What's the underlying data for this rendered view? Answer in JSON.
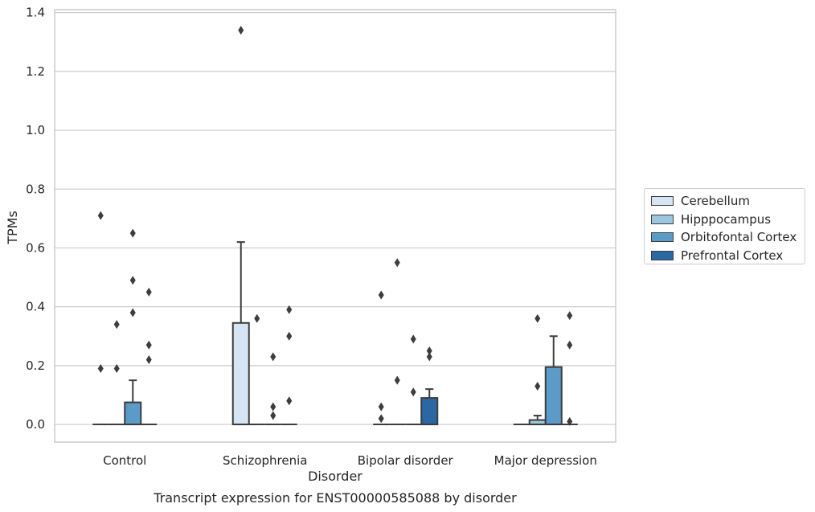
{
  "chart_data": {
    "type": "box",
    "title": "",
    "xlabel": "Disorder",
    "ylabel": "TPMs",
    "caption": "Transcript expression for ENST00000585088 by disorder",
    "ylim": [
      -0.06,
      1.41
    ],
    "yticks": [
      "0.0",
      "0.2",
      "0.4",
      "0.6",
      "0.8",
      "1.0",
      "1.2",
      "1.4"
    ],
    "grid": true,
    "legend_position": "right",
    "categories": [
      "Control",
      "Schizophrenia",
      "Bipolar disorder",
      "Major depression"
    ],
    "series": [
      {
        "name": "Cerebellum",
        "color": "#d6e5f4",
        "boxes": [
          {
            "q1": 0.0,
            "median": 0.0,
            "q3": 0.0,
            "whisker_low": 0.0,
            "whisker_high": 0.0,
            "outliers": [
              0.19,
              0.71
            ]
          },
          {
            "q1": 0.0,
            "median": 0.0,
            "q3": 0.345,
            "whisker_low": 0.0,
            "whisker_high": 0.62,
            "outliers": [
              1.34
            ]
          },
          {
            "q1": 0.0,
            "median": 0.0,
            "q3": 0.0,
            "whisker_low": 0.0,
            "whisker_high": 0.0,
            "outliers": [
              0.02,
              0.06,
              0.44
            ]
          },
          {
            "q1": 0.0,
            "median": 0.0,
            "q3": 0.0,
            "whisker_low": 0.0,
            "whisker_high": 0.0,
            "outliers": []
          }
        ]
      },
      {
        "name": "Hipppocampus",
        "color": "#9dc7e0",
        "boxes": [
          {
            "q1": 0.0,
            "median": 0.0,
            "q3": 0.0,
            "whisker_low": 0.0,
            "whisker_high": 0.0,
            "outliers": [
              0.19,
              0.34
            ]
          },
          {
            "q1": 0.0,
            "median": 0.0,
            "q3": 0.0,
            "whisker_low": 0.0,
            "whisker_high": 0.0,
            "outliers": [
              0.36
            ]
          },
          {
            "q1": 0.0,
            "median": 0.0,
            "q3": 0.0,
            "whisker_low": 0.0,
            "whisker_high": 0.0,
            "outliers": [
              0.15,
              0.55
            ]
          },
          {
            "q1": 0.0,
            "median": 0.0,
            "q3": 0.015,
            "whisker_low": 0.0,
            "whisker_high": 0.03,
            "outliers": [
              0.13,
              0.36
            ]
          }
        ]
      },
      {
        "name": "Orbitofontal Cortex",
        "color": "#5b9bc8",
        "boxes": [
          {
            "q1": 0.0,
            "median": 0.0,
            "q3": 0.075,
            "whisker_low": 0.0,
            "whisker_high": 0.15,
            "outliers": [
              0.38,
              0.49,
              0.65
            ]
          },
          {
            "q1": 0.0,
            "median": 0.0,
            "q3": 0.0,
            "whisker_low": 0.0,
            "whisker_high": 0.0,
            "outliers": [
              0.03,
              0.06,
              0.23
            ]
          },
          {
            "q1": 0.0,
            "median": 0.0,
            "q3": 0.0,
            "whisker_low": 0.0,
            "whisker_high": 0.0,
            "outliers": [
              0.11,
              0.29
            ]
          },
          {
            "q1": 0.0,
            "median": 0.0,
            "q3": 0.195,
            "whisker_low": 0.0,
            "whisker_high": 0.3,
            "outliers": []
          }
        ]
      },
      {
        "name": "Prefrontal Cortex",
        "color": "#2a68a5",
        "boxes": [
          {
            "q1": 0.0,
            "median": 0.0,
            "q3": 0.0,
            "whisker_low": 0.0,
            "whisker_high": 0.0,
            "outliers": [
              0.22,
              0.27,
              0.45
            ]
          },
          {
            "q1": 0.0,
            "median": 0.0,
            "q3": 0.0,
            "whisker_low": 0.0,
            "whisker_high": 0.0,
            "outliers": [
              0.08,
              0.3,
              0.39
            ]
          },
          {
            "q1": 0.0,
            "median": 0.0,
            "q3": 0.09,
            "whisker_low": 0.0,
            "whisker_high": 0.12,
            "outliers": [
              0.23,
              0.25
            ]
          },
          {
            "q1": 0.0,
            "median": 0.0,
            "q3": 0.0,
            "whisker_low": 0.0,
            "whisker_high": 0.0,
            "outliers": [
              0.01,
              0.27,
              0.37
            ]
          }
        ]
      }
    ]
  }
}
